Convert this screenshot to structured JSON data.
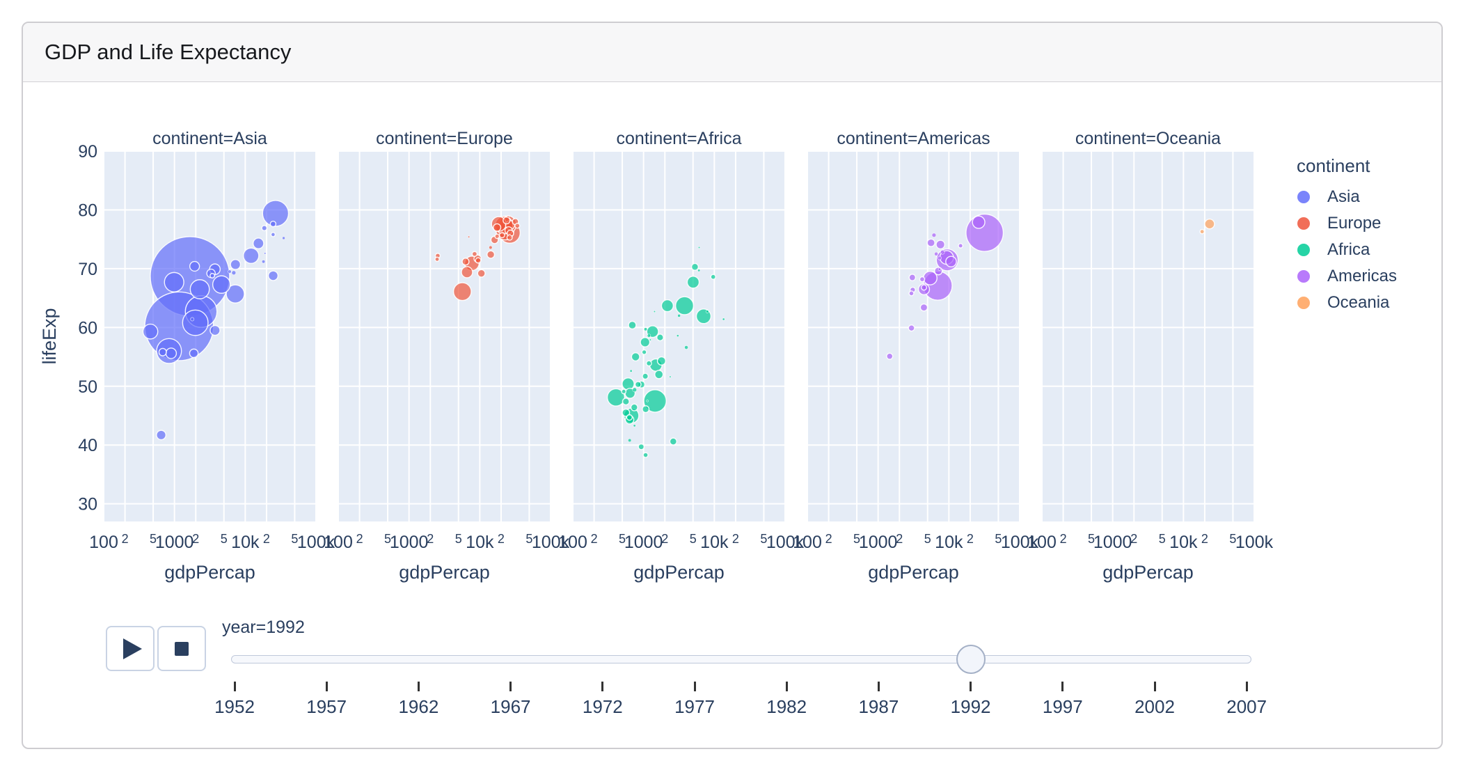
{
  "header": {
    "title": "GDP and Life Expectancy"
  },
  "colors": {
    "plot_bg": "#e5ecf6",
    "grid": "#ffffff",
    "text": "#2a3f5f",
    "asia": "#636efa",
    "europe": "#ef553b",
    "africa": "#00cc96",
    "americas": "#ab63fa",
    "oceania": "#ffa15a"
  },
  "chart_data": {
    "type": "scatter",
    "subtype": "faceted-bubble",
    "x_label": "gdpPercap",
    "y_label": "lifeExp",
    "x_scale": "log",
    "x_range": [
      100,
      100000
    ],
    "y_range": [
      27,
      90
    ],
    "grid": true,
    "y_ticks": [
      90,
      80,
      70,
      60,
      50,
      40,
      30
    ],
    "x_ticks": [
      {
        "label": "100",
        "log": 2.0,
        "minor": false
      },
      {
        "label": "2",
        "log": 2.301,
        "minor": true
      },
      {
        "label": "5",
        "log": 2.699,
        "minor": true
      },
      {
        "label": "1000",
        "log": 3.0,
        "minor": false
      },
      {
        "label": "2",
        "log": 3.301,
        "minor": true
      },
      {
        "label": "5",
        "log": 3.699,
        "minor": true
      },
      {
        "label": "10k",
        "log": 4.0,
        "minor": false
      },
      {
        "label": "2",
        "log": 4.301,
        "minor": true
      },
      {
        "label": "5",
        "log": 4.699,
        "minor": true
      },
      {
        "label": "100k",
        "log": 5.0,
        "minor": false
      }
    ],
    "facets": [
      {
        "title": "continent=Asia",
        "series": "Asia"
      },
      {
        "title": "continent=Europe",
        "series": "Europe"
      },
      {
        "title": "continent=Africa",
        "series": "Africa"
      },
      {
        "title": "continent=Americas",
        "series": "Americas"
      },
      {
        "title": "continent=Oceania",
        "series": "Oceania"
      }
    ],
    "legend": {
      "title": "continent",
      "position": "right",
      "items": [
        {
          "label": "Asia",
          "color": "#636efa"
        },
        {
          "label": "Europe",
          "color": "#ef553b"
        },
        {
          "label": "Africa",
          "color": "#00cc96"
        },
        {
          "label": "Americas",
          "color": "#ab63fa"
        },
        {
          "label": "Oceania",
          "color": "#ffa15a"
        }
      ]
    },
    "size": {
      "encodes": "population (millions), bubble area",
      "max_value": 1164.97,
      "max_radius_px": 57,
      "min_radius_px": 1.3,
      "opacity": 0.7
    },
    "point_columns": [
      "gdpPercap",
      "lifeExp",
      "pop_millions"
    ],
    "series": [
      {
        "name": "Asia",
        "color": "#636efa",
        "points": [
          [
            649,
            41.7,
            16.32
          ],
          [
            19035,
            72.6,
            0.53
          ],
          [
            838,
            56.0,
            113.7
          ],
          [
            682,
            55.8,
            10.15
          ],
          [
            1656,
            68.7,
            1164.97
          ],
          [
            24758,
            77.6,
            5.83
          ],
          [
            1164,
            60.2,
            872.0
          ],
          [
            2383,
            62.7,
            184.82
          ],
          [
            7235,
            65.7,
            60.4
          ],
          [
            3745,
            59.5,
            17.86
          ],
          [
            18616,
            76.9,
            4.94
          ],
          [
            26825,
            79.4,
            124.34
          ],
          [
            3431,
            68.8,
            3.87
          ],
          [
            3727,
            69.9,
            20.71
          ],
          [
            12104,
            72.2,
            43.81
          ],
          [
            34933,
            75.2,
            1.42
          ],
          [
            6890,
            69.3,
            3.22
          ],
          [
            7277,
            70.7,
            18.32
          ],
          [
            1785,
            61.4,
            2.31
          ],
          [
            457,
            59.3,
            40.55
          ],
          [
            897,
            55.6,
            20.33
          ],
          [
            18115,
            71.2,
            1.92
          ],
          [
            1972,
            60.8,
            120.07
          ],
          [
            2279,
            66.5,
            67.19
          ],
          [
            24837,
            68.8,
            16.95
          ],
          [
            24769,
            75.8,
            3.24
          ],
          [
            1927,
            70.4,
            17.41
          ],
          [
            3285,
            69.2,
            13.22
          ],
          [
            15363,
            74.3,
            20.69
          ],
          [
            4617,
            67.3,
            56.67
          ],
          [
            989,
            67.7,
            69.54
          ],
          [
            6017,
            69.5,
            2.1
          ],
          [
            1880,
            55.6,
            13.37
          ]
        ]
      },
      {
        "name": "Europe",
        "color": "#ef553b",
        "points": [
          [
            2497,
            71.6,
            3.3
          ],
          [
            27042,
            76.0,
            7.91
          ],
          [
            25576,
            76.5,
            10.05
          ],
          [
            2547,
            72.2,
            4.26
          ],
          [
            6303,
            71.2,
            8.66
          ],
          [
            8448,
            72.5,
            4.49
          ],
          [
            14297,
            72.4,
            10.32
          ],
          [
            26407,
            75.3,
            5.17
          ],
          [
            20647,
            75.7,
            5.04
          ],
          [
            24704,
            77.5,
            57.37
          ],
          [
            26505,
            76.1,
            80.6
          ],
          [
            17541,
            77.0,
            10.33
          ],
          [
            10536,
            69.2,
            10.35
          ],
          [
            25144,
            78.8,
            0.26
          ],
          [
            17559,
            75.5,
            3.56
          ],
          [
            22014,
            77.4,
            56.84
          ],
          [
            7003,
            75.4,
            0.62
          ],
          [
            26791,
            77.4,
            15.17
          ],
          [
            33965,
            77.3,
            4.29
          ],
          [
            7739,
            70.9,
            38.37
          ],
          [
            16207,
            74.9,
            9.93
          ],
          [
            6598,
            69.4,
            22.8
          ],
          [
            9325,
            71.7,
            9.83
          ],
          [
            9498,
            71.4,
            5.3
          ],
          [
            14214,
            73.6,
            2.0
          ],
          [
            18603,
            77.6,
            39.55
          ],
          [
            23880,
            78.2,
            8.72
          ],
          [
            31871,
            78.0,
            6.94
          ],
          [
            5678,
            66.1,
            58.18
          ],
          [
            22705,
            76.4,
            57.87
          ]
        ]
      },
      {
        "name": "Africa",
        "color": "#00cc96",
        "points": [
          [
            5023,
            67.7,
            26.3
          ],
          [
            2628,
            40.6,
            8.74
          ],
          [
            1191,
            53.9,
            4.98
          ],
          [
            7954,
            62.7,
            1.35
          ],
          [
            931,
            50.3,
            8.88
          ],
          [
            631,
            44.7,
            5.81
          ],
          [
            1793,
            54.3,
            12.47
          ],
          [
            747,
            49.4,
            3.19
          ],
          [
            1058,
            51.7,
            6.3
          ],
          [
            1246,
            57.9,
            0.45
          ],
          [
            672,
            45.0,
            41.28
          ],
          [
            4016,
            56.6,
            2.41
          ],
          [
            1648,
            52.0,
            12.77
          ],
          [
            2377,
            51.6,
            0.38
          ],
          [
            3794,
            63.7,
            59.4
          ],
          [
            1132,
            47.5,
            0.39
          ],
          [
            525,
            49.1,
            3.67
          ],
          [
            407,
            48.1,
            55.0
          ],
          [
            13522,
            61.4,
            0.99
          ],
          [
            665,
            52.6,
            1.03
          ],
          [
            1050,
            57.5,
            16.12
          ],
          [
            837,
            50.3,
            6.4
          ],
          [
            745,
            43.3,
            1.05
          ],
          [
            1342,
            59.3,
            25.02
          ],
          [
            1068,
            59.7,
            1.8
          ],
          [
            636,
            40.8,
            1.91
          ],
          [
            9641,
            68.6,
            4.36
          ],
          [
            771,
            55.0,
            12.21
          ],
          [
            563,
            45.5,
            10.01
          ],
          [
            739,
            46.4,
            8.42
          ],
          [
            1191,
            58.6,
            2.06
          ],
          [
            6058,
            69.7,
            1.1
          ],
          [
            2171,
            63.7,
            25.8
          ],
          [
            634,
            44.3,
            13.16
          ],
          [
            3173,
            62.0,
            1.55
          ],
          [
            563,
            47.4,
            8.34
          ],
          [
            1452,
            47.5,
            93.36
          ],
          [
            6101,
            73.6,
            0.62
          ],
          [
            1429,
            62.7,
            0.13
          ],
          [
            1713,
            58.3,
            8.03
          ],
          [
            1069,
            38.3,
            4.26
          ],
          [
            926,
            39.7,
            6.1
          ],
          [
            7062,
            61.9,
            39.32
          ],
          [
            1492,
            53.6,
            28.23
          ],
          [
            3044,
            58.6,
            0.93
          ],
          [
            605,
            50.4,
            26.61
          ],
          [
            1021,
            55.8,
            3.93
          ],
          [
            5319,
            70.3,
            8.56
          ],
          [
            645,
            48.8,
            18.66
          ],
          [
            1071,
            46.1,
            8.38
          ],
          [
            693,
            60.4,
            10.7
          ]
        ]
      },
      {
        "name": "Americas",
        "color": "#ab63fa",
        "points": [
          [
            9308,
            71.9,
            33.96
          ],
          [
            2961,
            59.9,
            6.89
          ],
          [
            6950,
            67.1,
            155.0
          ],
          [
            26343,
            77.9,
            28.52
          ],
          [
            7596,
            74.1,
            13.57
          ],
          [
            5444,
            68.4,
            34.2
          ],
          [
            6160,
            75.7,
            3.17
          ],
          [
            5592,
            74.4,
            10.72
          ],
          [
            3044,
            68.5,
            7.62
          ],
          [
            7103,
            69.6,
            10.75
          ],
          [
            4444,
            66.8,
            5.28
          ],
          [
            4439,
            63.4,
            9.31
          ],
          [
            1456,
            55.1,
            6.95
          ],
          [
            3081,
            66.4,
            5.08
          ],
          [
            7404,
            71.8,
            2.38
          ],
          [
            9472,
            71.5,
            88.11
          ],
          [
            2955,
            65.8,
            4.17
          ],
          [
            6618,
            72.5,
            2.53
          ],
          [
            4196,
            68.2,
            4.52
          ],
          [
            4446,
            66.5,
            22.43
          ],
          [
            14641,
            73.9,
            3.59
          ],
          [
            7370,
            69.9,
            1.18
          ],
          [
            32003,
            76.1,
            256.89
          ],
          [
            8137,
            72.8,
            3.06
          ],
          [
            10733,
            71.2,
            20.73
          ]
        ]
      },
      {
        "name": "Oceania",
        "color": "#ffa15a",
        "points": [
          [
            23424,
            77.6,
            17.48
          ],
          [
            18363,
            76.3,
            3.44
          ]
        ]
      }
    ]
  },
  "animation": {
    "current_label": "year=1992",
    "current_year": 1992,
    "years": [
      1952,
      1957,
      1962,
      1967,
      1972,
      1977,
      1982,
      1987,
      1992,
      1997,
      2002,
      2007
    ],
    "play_icon": "play-triangle-icon",
    "stop_icon": "stop-square-icon"
  }
}
